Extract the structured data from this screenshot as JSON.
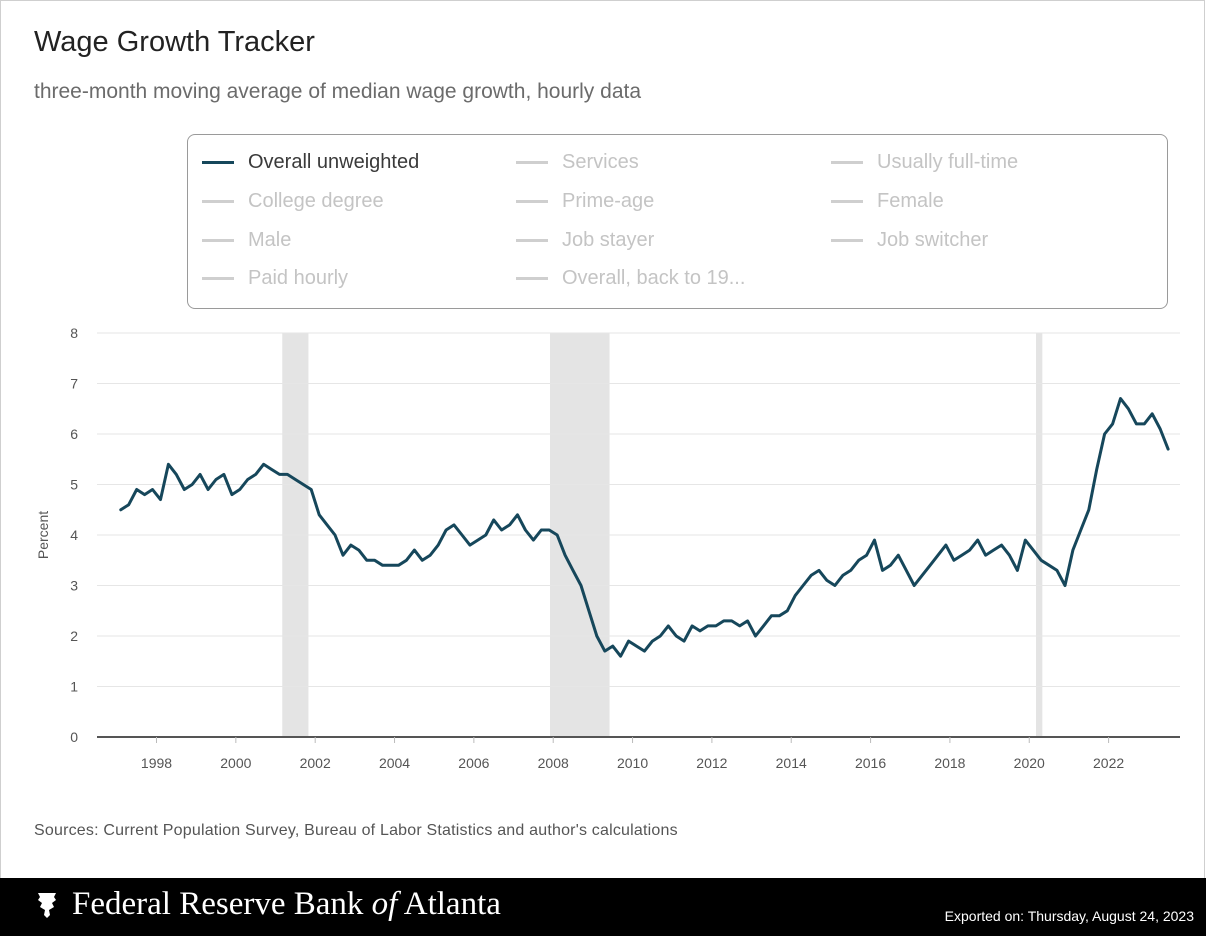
{
  "header": {
    "title": "Wage Growth Tracker",
    "subtitle": "three-month moving average of median wage growth, hourly data"
  },
  "legend": {
    "items": [
      {
        "label": "Overall unweighted",
        "active": true
      },
      {
        "label": "Services",
        "active": false
      },
      {
        "label": "Usually full-time",
        "active": false
      },
      {
        "label": "College degree",
        "active": false
      },
      {
        "label": "Prime-age",
        "active": false
      },
      {
        "label": "Female",
        "active": false
      },
      {
        "label": "Male",
        "active": false
      },
      {
        "label": "Job stayer",
        "active": false
      },
      {
        "label": "Job switcher",
        "active": false
      },
      {
        "label": "Paid hourly",
        "active": false
      },
      {
        "label": "Overall, back to 19...",
        "active": false
      }
    ]
  },
  "colors": {
    "series": "#16475b",
    "recession": "#e4e4e4",
    "grid": "#e6e6e6",
    "axis": "#555555"
  },
  "chart_data": {
    "type": "line",
    "title": "Wage Growth Tracker",
    "subtitle": "three-month moving average of median wage growth, hourly data",
    "xlabel": "",
    "ylabel": "Percent",
    "ylim": [
      0,
      8
    ],
    "xlim": [
      1996.5,
      2023.8
    ],
    "yticks": [
      "0",
      "1",
      "2",
      "3",
      "4",
      "5",
      "6",
      "7",
      "8"
    ],
    "xticks": [
      "1998",
      "2000",
      "2002",
      "2004",
      "2006",
      "2008",
      "2010",
      "2012",
      "2014",
      "2016",
      "2018",
      "2020",
      "2022"
    ],
    "grid": true,
    "legend_position": "top",
    "recessions": [
      [
        2001.17,
        2001.83
      ],
      [
        2007.92,
        2009.42
      ],
      [
        2020.17,
        2020.33
      ]
    ],
    "series": [
      {
        "name": "Overall unweighted",
        "x": [
          1997.1,
          1997.3,
          1997.5,
          1997.7,
          1997.9,
          1998.1,
          1998.3,
          1998.5,
          1998.7,
          1998.9,
          1999.1,
          1999.3,
          1999.5,
          1999.7,
          1999.9,
          2000.1,
          2000.3,
          2000.5,
          2000.7,
          2000.9,
          2001.1,
          2001.3,
          2001.5,
          2001.7,
          2001.9,
          2002.1,
          2002.3,
          2002.5,
          2002.7,
          2002.9,
          2003.1,
          2003.3,
          2003.5,
          2003.7,
          2003.9,
          2004.1,
          2004.3,
          2004.5,
          2004.7,
          2004.9,
          2005.1,
          2005.3,
          2005.5,
          2005.7,
          2005.9,
          2006.1,
          2006.3,
          2006.5,
          2006.7,
          2006.9,
          2007.1,
          2007.3,
          2007.5,
          2007.7,
          2007.9,
          2008.1,
          2008.3,
          2008.5,
          2008.7,
          2008.9,
          2009.1,
          2009.3,
          2009.5,
          2009.7,
          2009.9,
          2010.1,
          2010.3,
          2010.5,
          2010.7,
          2010.9,
          2011.1,
          2011.3,
          2011.5,
          2011.7,
          2011.9,
          2012.1,
          2012.3,
          2012.5,
          2012.7,
          2012.9,
          2013.1,
          2013.3,
          2013.5,
          2013.7,
          2013.9,
          2014.1,
          2014.3,
          2014.5,
          2014.7,
          2014.9,
          2015.1,
          2015.3,
          2015.5,
          2015.7,
          2015.9,
          2016.1,
          2016.3,
          2016.5,
          2016.7,
          2016.9,
          2017.1,
          2017.3,
          2017.5,
          2017.7,
          2017.9,
          2018.1,
          2018.3,
          2018.5,
          2018.7,
          2018.9,
          2019.1,
          2019.3,
          2019.5,
          2019.7,
          2019.9,
          2020.1,
          2020.3,
          2020.5,
          2020.7,
          2020.9,
          2021.1,
          2021.3,
          2021.5,
          2021.7,
          2021.9,
          2022.1,
          2022.3,
          2022.5,
          2022.7,
          2022.9,
          2023.1,
          2023.3,
          2023.5
        ],
        "values": [
          4.5,
          4.6,
          4.9,
          4.8,
          4.9,
          4.7,
          5.4,
          5.2,
          4.9,
          5.0,
          5.2,
          4.9,
          5.1,
          5.2,
          4.8,
          4.9,
          5.1,
          5.2,
          5.4,
          5.3,
          5.2,
          5.2,
          5.1,
          5.0,
          4.9,
          4.4,
          4.2,
          4.0,
          3.6,
          3.8,
          3.7,
          3.5,
          3.5,
          3.4,
          3.4,
          3.4,
          3.5,
          3.7,
          3.5,
          3.6,
          3.8,
          4.1,
          4.2,
          4.0,
          3.8,
          3.9,
          4.0,
          4.3,
          4.1,
          4.2,
          4.4,
          4.1,
          3.9,
          4.1,
          4.1,
          4.0,
          3.6,
          3.3,
          3.0,
          2.5,
          2.0,
          1.7,
          1.8,
          1.6,
          1.9,
          1.8,
          1.7,
          1.9,
          2.0,
          2.2,
          2.0,
          1.9,
          2.2,
          2.1,
          2.2,
          2.2,
          2.3,
          2.3,
          2.2,
          2.3,
          2.0,
          2.2,
          2.4,
          2.4,
          2.5,
          2.8,
          3.0,
          3.2,
          3.3,
          3.1,
          3.0,
          3.2,
          3.3,
          3.5,
          3.6,
          3.9,
          3.3,
          3.4,
          3.6,
          3.3,
          3.0,
          3.2,
          3.4,
          3.6,
          3.8,
          3.5,
          3.6,
          3.7,
          3.9,
          3.6,
          3.7,
          3.8,
          3.6,
          3.3,
          3.9,
          3.7,
          3.5,
          3.4,
          3.3,
          3.0,
          3.7,
          4.1,
          4.5,
          5.3,
          6.0,
          6.2,
          6.7,
          6.5,
          6.2,
          6.2,
          6.4,
          6.1,
          5.7
        ]
      }
    ]
  },
  "sources": "Sources: Current Population Survey, Bureau of Labor Statistics and author's calculations",
  "footer": {
    "bank_prefix": "Federal Reserve Bank ",
    "bank_of": "of",
    "bank_suffix": " Atlanta",
    "exported": "Exported on: Thursday, August 24, 2023"
  }
}
